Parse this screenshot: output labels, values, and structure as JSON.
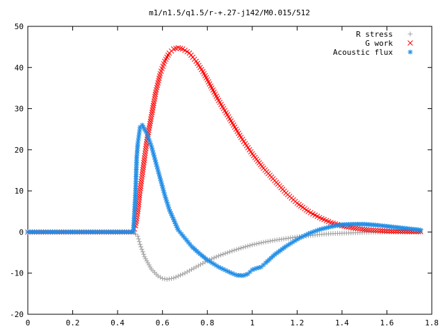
{
  "chart_data": {
    "type": "scatter",
    "title": "m1/n1.5/q1.5/r-+.27-j142/M0.015/512",
    "xlabel": "",
    "ylabel": "",
    "xlim": [
      0,
      1.8
    ],
    "ylim": [
      -20,
      50
    ],
    "x_ticks": [
      "0",
      "0.2",
      "0.4",
      "0.6",
      "0.8",
      "1",
      "1.2",
      "1.4",
      "1.6",
      "1.8"
    ],
    "y_ticks": [
      "-20",
      "-10",
      "0",
      "10",
      "20",
      "30",
      "40",
      "50"
    ],
    "grid": false,
    "legend_position": "top-right",
    "series": [
      {
        "name": "R stress",
        "marker": "plus",
        "color": "#a0a0a0",
        "points": [
          [
            0,
            0
          ],
          [
            0.1,
            0
          ],
          [
            0.2,
            0
          ],
          [
            0.3,
            0
          ],
          [
            0.4,
            0
          ],
          [
            0.47,
            0
          ],
          [
            0.49,
            -1
          ],
          [
            0.5,
            -3
          ],
          [
            0.52,
            -6
          ],
          [
            0.55,
            -9
          ],
          [
            0.58,
            -10.7
          ],
          [
            0.6,
            -11.3
          ],
          [
            0.62,
            -11.5
          ],
          [
            0.65,
            -11.2
          ],
          [
            0.7,
            -10
          ],
          [
            0.75,
            -8.5
          ],
          [
            0.8,
            -7
          ],
          [
            0.85,
            -5.8
          ],
          [
            0.9,
            -4.8
          ],
          [
            0.95,
            -3.9
          ],
          [
            1.0,
            -3.1
          ],
          [
            1.05,
            -2.5
          ],
          [
            1.1,
            -2.0
          ],
          [
            1.15,
            -1.6
          ],
          [
            1.2,
            -1.2
          ],
          [
            1.25,
            -0.9
          ],
          [
            1.3,
            -0.6
          ],
          [
            1.35,
            -0.4
          ],
          [
            1.4,
            -0.3
          ],
          [
            1.45,
            -0.2
          ],
          [
            1.5,
            -0.1
          ],
          [
            1.6,
            0
          ],
          [
            1.75,
            0
          ]
        ]
      },
      {
        "name": "G work",
        "marker": "cross",
        "color": "#ff0000",
        "points": [
          [
            0,
            0
          ],
          [
            0.1,
            0
          ],
          [
            0.2,
            0
          ],
          [
            0.3,
            0
          ],
          [
            0.4,
            0
          ],
          [
            0.47,
            0
          ],
          [
            0.48,
            1.5
          ],
          [
            0.49,
            5
          ],
          [
            0.5,
            10
          ],
          [
            0.51,
            14
          ],
          [
            0.52,
            18
          ],
          [
            0.53,
            22
          ],
          [
            0.55,
            28
          ],
          [
            0.57,
            34
          ],
          [
            0.59,
            38.5
          ],
          [
            0.61,
            41.5
          ],
          [
            0.63,
            43.5
          ],
          [
            0.65,
            44.5
          ],
          [
            0.67,
            44.8
          ],
          [
            0.69,
            44.5
          ],
          [
            0.72,
            43.5
          ],
          [
            0.75,
            41.5
          ],
          [
            0.78,
            39
          ],
          [
            0.81,
            36
          ],
          [
            0.85,
            32
          ],
          [
            0.9,
            27.5
          ],
          [
            0.95,
            23
          ],
          [
            1.0,
            19
          ],
          [
            1.05,
            15.5
          ],
          [
            1.1,
            12.5
          ],
          [
            1.15,
            9.5
          ],
          [
            1.2,
            7
          ],
          [
            1.25,
            5
          ],
          [
            1.3,
            3.5
          ],
          [
            1.35,
            2.3
          ],
          [
            1.4,
            1.5
          ],
          [
            1.45,
            1.0
          ],
          [
            1.5,
            0.6
          ],
          [
            1.55,
            0.4
          ],
          [
            1.6,
            0.2
          ],
          [
            1.7,
            0.1
          ],
          [
            1.75,
            0.1
          ]
        ]
      },
      {
        "name": "Acoustic flux",
        "marker": "star",
        "color": "#1e8ce6",
        "points": [
          [
            0,
            0
          ],
          [
            0.1,
            0
          ],
          [
            0.2,
            0
          ],
          [
            0.3,
            0
          ],
          [
            0.4,
            0
          ],
          [
            0.47,
            0
          ],
          [
            0.48,
            9.5
          ],
          [
            0.485,
            18
          ],
          [
            0.49,
            21.5
          ],
          [
            0.495,
            23.5
          ],
          [
            0.5,
            25.5
          ],
          [
            0.51,
            26
          ],
          [
            0.52,
            25
          ],
          [
            0.53,
            24
          ],
          [
            0.55,
            21
          ],
          [
            0.57,
            17
          ],
          [
            0.59,
            13
          ],
          [
            0.61,
            9
          ],
          [
            0.63,
            5.5
          ],
          [
            0.65,
            3
          ],
          [
            0.67,
            0.5
          ],
          [
            0.7,
            -1.5
          ],
          [
            0.73,
            -3.5
          ],
          [
            0.76,
            -5
          ],
          [
            0.8,
            -6.8
          ],
          [
            0.85,
            -8.5
          ],
          [
            0.9,
            -9.8
          ],
          [
            0.93,
            -10.5
          ],
          [
            0.96,
            -10.6
          ],
          [
            0.98,
            -10.2
          ],
          [
            1.0,
            -9.2
          ],
          [
            1.02,
            -8.8
          ],
          [
            1.04,
            -8.5
          ],
          [
            1.06,
            -7.5
          ],
          [
            1.1,
            -5.5
          ],
          [
            1.15,
            -3.5
          ],
          [
            1.2,
            -1.8
          ],
          [
            1.25,
            -0.4
          ],
          [
            1.3,
            0.6
          ],
          [
            1.35,
            1.3
          ],
          [
            1.4,
            1.8
          ],
          [
            1.45,
            1.9
          ],
          [
            1.5,
            1.9
          ],
          [
            1.55,
            1.7
          ],
          [
            1.6,
            1.4
          ],
          [
            1.65,
            1.1
          ],
          [
            1.7,
            0.8
          ],
          [
            1.75,
            0.5
          ]
        ]
      }
    ]
  }
}
